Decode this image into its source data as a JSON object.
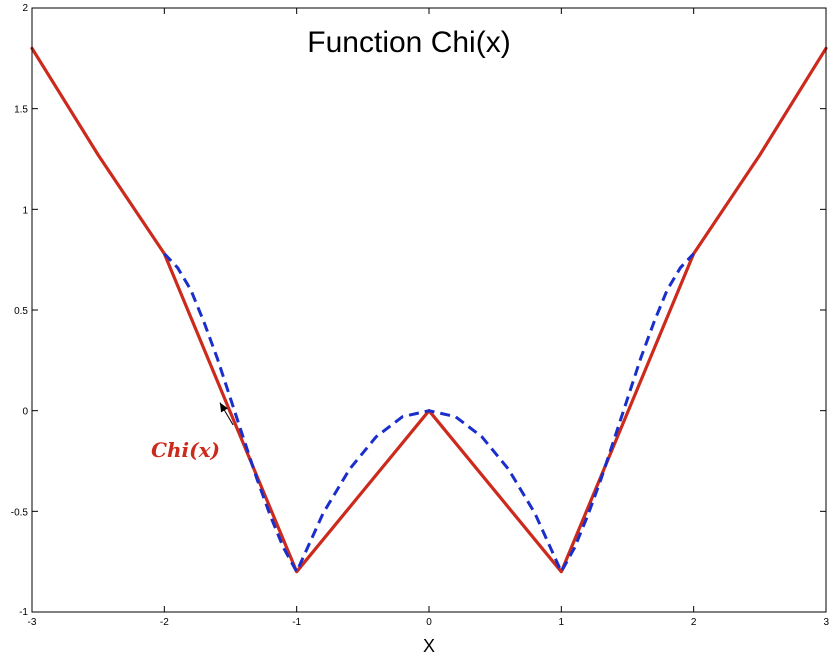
{
  "chart_data": {
    "type": "line",
    "title": "Function Chi(x)",
    "xlabel": "X",
    "ylabel": "",
    "xlim": [
      -3,
      3
    ],
    "ylim": [
      -1,
      2
    ],
    "xticks": [
      -3,
      -2,
      -1,
      0,
      1,
      2,
      3
    ],
    "xtick_labels": [
      "-3",
      "-2",
      "-1",
      "0",
      "1",
      "2",
      "3"
    ],
    "yticks": [
      -1,
      -0.5,
      0,
      0.5,
      1,
      1.5,
      2
    ],
    "ytick_labels": [
      "-1",
      "-0.5",
      "0",
      "0.5",
      "1",
      "1.5",
      "2"
    ],
    "grid": false,
    "series": [
      {
        "name": "Chi(x)",
        "color": "#cc2a1c",
        "style": "solid",
        "x": [
          -3,
          -2.5,
          -2,
          -1,
          0,
          1,
          2,
          2.5,
          3
        ],
        "y": [
          1.8,
          1.27,
          0.78,
          -0.8,
          0,
          -0.8,
          0.78,
          1.27,
          1.8
        ]
      },
      {
        "color": "#1a2ecc",
        "style": "dashed",
        "x": [
          -2,
          -1.9,
          -1.8,
          -1.7,
          -1.6,
          -1.5,
          -1.4,
          -1.3,
          -1.2,
          -1.1,
          -1.0,
          -0.8,
          -0.6,
          -0.4,
          -0.2,
          0,
          0.2,
          0.4,
          0.6,
          0.8,
          1.0,
          1.1,
          1.2,
          1.3,
          1.4,
          1.5,
          1.6,
          1.7,
          1.8,
          1.9,
          2.0
        ],
        "y": [
          0.78,
          0.71,
          0.6,
          0.44,
          0.26,
          0.06,
          -0.14,
          -0.34,
          -0.52,
          -0.68,
          -0.8,
          -0.51,
          -0.29,
          -0.13,
          -0.03,
          0,
          -0.03,
          -0.13,
          -0.29,
          -0.51,
          -0.8,
          -0.68,
          -0.52,
          -0.34,
          -0.14,
          0.06,
          0.26,
          0.44,
          0.6,
          0.71,
          0.78
        ]
      }
    ],
    "annotation": {
      "text": "Chi(x)",
      "color": "#cc2a1c",
      "text_x": -2.1,
      "text_y": -0.2,
      "arrow_to_x": -1.58,
      "arrow_to_y": 0.04
    }
  }
}
